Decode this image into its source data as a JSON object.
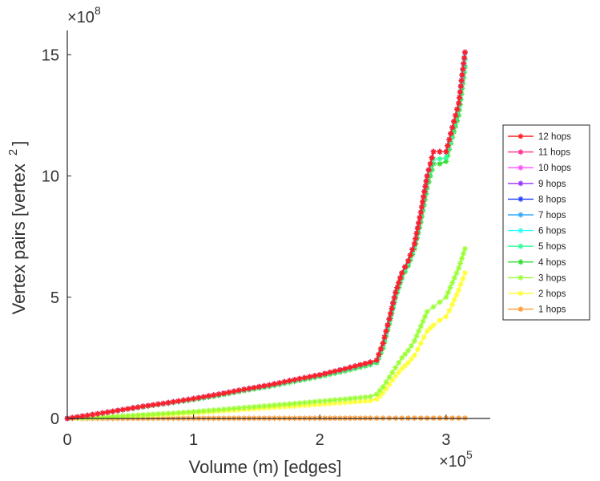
{
  "chart_data": {
    "type": "line",
    "xlabel": "Volume (m) [edges]",
    "ylabel": "Vertex pairs [vertex",
    "ylabel_sup": "2",
    "ylabel_close": "]",
    "x_multiplier": {
      "base": "×10",
      "exp": "5"
    },
    "y_multiplier": {
      "base": "×10",
      "exp": "8"
    },
    "xlim": [
      0,
      335000
    ],
    "ylim": [
      0,
      1600000000
    ],
    "x_ticks": [
      0,
      100000,
      200000,
      300000
    ],
    "x_tick_labels": [
      "0",
      "1",
      "2",
      "3"
    ],
    "y_ticks": [
      0,
      500000000,
      1000000000,
      1500000000
    ],
    "y_tick_labels": [
      "0",
      "5",
      "10",
      "15"
    ],
    "grid": false,
    "legend_position": "right",
    "x": [
      0,
      20000,
      40000,
      60000,
      80000,
      100000,
      120000,
      140000,
      160000,
      180000,
      200000,
      220000,
      240000,
      245000,
      250000,
      255000,
      260000,
      265000,
      270000,
      275000,
      280000,
      285000,
      290000,
      295000,
      300000,
      305000,
      310000,
      315000
    ],
    "series": [
      {
        "name": "12 hops",
        "color": "#ff2020",
        "values": [
          0,
          16000000,
          33000000,
          50000000,
          65000000,
          82000000,
          100000000,
          120000000,
          138000000,
          160000000,
          180000000,
          205000000,
          232000000,
          240000000,
          310000000,
          410000000,
          520000000,
          600000000,
          650000000,
          720000000,
          850000000,
          1000000000,
          1100000000,
          1100000000,
          1100000000,
          1200000000,
          1300000000,
          1510000000
        ]
      },
      {
        "name": "11 hops",
        "color": "#ff2d8c",
        "values": [
          0,
          16000000,
          33000000,
          50000000,
          65000000,
          82000000,
          100000000,
          120000000,
          138000000,
          160000000,
          180000000,
          205000000,
          232000000,
          240000000,
          310000000,
          410000000,
          520000000,
          600000000,
          650000000,
          720000000,
          850000000,
          1000000000,
          1100000000,
          1100000000,
          1100000000,
          1200000000,
          1300000000,
          1510000000
        ]
      },
      {
        "name": "10 hops",
        "color": "#ff4dff",
        "values": [
          0,
          16000000,
          33000000,
          50000000,
          65000000,
          82000000,
          100000000,
          120000000,
          138000000,
          160000000,
          180000000,
          205000000,
          232000000,
          240000000,
          310000000,
          410000000,
          520000000,
          600000000,
          650000000,
          720000000,
          850000000,
          1000000000,
          1100000000,
          1100000000,
          1100000000,
          1200000000,
          1300000000,
          1510000000
        ]
      },
      {
        "name": "9 hops",
        "color": "#9933ff",
        "values": [
          0,
          16000000,
          33000000,
          50000000,
          65000000,
          82000000,
          100000000,
          120000000,
          138000000,
          160000000,
          180000000,
          205000000,
          232000000,
          240000000,
          310000000,
          410000000,
          520000000,
          600000000,
          650000000,
          720000000,
          850000000,
          1000000000,
          1100000000,
          1100000000,
          1100000000,
          1200000000,
          1300000000,
          1510000000
        ]
      },
      {
        "name": "8 hops",
        "color": "#2040ff",
        "values": [
          0,
          16000000,
          33000000,
          50000000,
          65000000,
          82000000,
          100000000,
          120000000,
          138000000,
          160000000,
          180000000,
          205000000,
          232000000,
          240000000,
          310000000,
          410000000,
          520000000,
          600000000,
          650000000,
          720000000,
          850000000,
          1000000000,
          1100000000,
          1100000000,
          1100000000,
          1200000000,
          1300000000,
          1510000000
        ]
      },
      {
        "name": "7 hops",
        "color": "#33aaff",
        "values": [
          0,
          16000000,
          33000000,
          50000000,
          65000000,
          82000000,
          100000000,
          120000000,
          138000000,
          160000000,
          180000000,
          205000000,
          232000000,
          240000000,
          310000000,
          410000000,
          520000000,
          600000000,
          650000000,
          720000000,
          850000000,
          1000000000,
          1100000000,
          1100000000,
          1100000000,
          1200000000,
          1300000000,
          1510000000
        ]
      },
      {
        "name": "6 hops",
        "color": "#33ffff",
        "values": [
          0,
          16000000,
          33000000,
          50000000,
          65000000,
          82000000,
          100000000,
          120000000,
          138000000,
          160000000,
          180000000,
          205000000,
          232000000,
          240000000,
          310000000,
          410000000,
          520000000,
          600000000,
          650000000,
          720000000,
          850000000,
          1000000000,
          1100000000,
          1100000000,
          1100000000,
          1200000000,
          1300000000,
          1505000000
        ]
      },
      {
        "name": "5 hops",
        "color": "#33ff99",
        "values": [
          0,
          15800000,
          32500000,
          49000000,
          64000000,
          80000000,
          98000000,
          118000000,
          135000000,
          157000000,
          177000000,
          200000000,
          227000000,
          235000000,
          300000000,
          400000000,
          510000000,
          590000000,
          640000000,
          710000000,
          830000000,
          980000000,
          1070000000,
          1070000000,
          1075000000,
          1180000000,
          1280000000,
          1480000000
        ]
      },
      {
        "name": "4 hops",
        "color": "#33dd33",
        "values": [
          0,
          15500000,
          32000000,
          48000000,
          63000000,
          78000000,
          95000000,
          115000000,
          132000000,
          153000000,
          173000000,
          196000000,
          222000000,
          230000000,
          290000000,
          390000000,
          500000000,
          580000000,
          630000000,
          700000000,
          810000000,
          950000000,
          1050000000,
          1050000000,
          1060000000,
          1160000000,
          1250000000,
          1450000000
        ]
      },
      {
        "name": "3 hops",
        "color": "#99ff33",
        "values": [
          0,
          4000000,
          9000000,
          15000000,
          21000000,
          28000000,
          36000000,
          45000000,
          53000000,
          62000000,
          71000000,
          80000000,
          90000000,
          100000000,
          130000000,
          170000000,
          210000000,
          250000000,
          280000000,
          320000000,
          380000000,
          440000000,
          460000000,
          480000000,
          500000000,
          560000000,
          620000000,
          700000000
        ]
      },
      {
        "name": "2 hops",
        "color": "#ffff33",
        "values": [
          0,
          3000000,
          7000000,
          12000000,
          17000000,
          23000000,
          30000000,
          37000000,
          44000000,
          51000000,
          58000000,
          66000000,
          73000000,
          80000000,
          105000000,
          140000000,
          175000000,
          205000000,
          230000000,
          260000000,
          310000000,
          360000000,
          385000000,
          405000000,
          420000000,
          470000000,
          530000000,
          600000000
        ]
      },
      {
        "name": "1 hops",
        "color": "#ff9933",
        "values": [
          0,
          100000,
          200000,
          300000,
          400000,
          500000,
          600000,
          700000,
          800000,
          900000,
          1000000,
          1100000,
          1200000,
          1225000,
          1250000,
          1275000,
          1300000,
          1325000,
          1350000,
          1375000,
          1400000,
          1425000,
          1450000,
          1475000,
          1500000,
          1525000,
          1550000,
          1575000
        ]
      }
    ]
  }
}
